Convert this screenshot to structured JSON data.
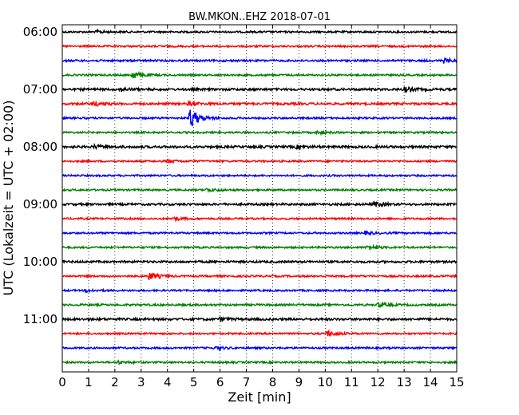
{
  "chart_data": {
    "type": "line",
    "title": "BW.MKON..EHZ 2018-07-01",
    "xlabel": "Zeit  [min]",
    "ylabel": "UTC (Lokalzeit = UTC + 02:00)",
    "xlim": [
      0,
      15
    ],
    "x_ticks": [
      "0",
      "1",
      "2",
      "3",
      "4",
      "5",
      "6",
      "7",
      "8",
      "9",
      "10",
      "11",
      "12",
      "13",
      "14",
      "15"
    ],
    "y_tick_labels": [
      "06:00",
      "07:00",
      "08:00",
      "09:00",
      "10:00",
      "11:00"
    ],
    "grid": "vertical dotted",
    "trace_colors": [
      "#000000",
      "#ff0000",
      "#0000ff",
      "#008000"
    ],
    "traces": [
      {
        "start": "06:00",
        "color": "#000000",
        "amplitude": 1.0,
        "events": [
          {
            "t": 1.3,
            "amp": 1.5
          }
        ]
      },
      {
        "start": "06:15",
        "color": "#ff0000",
        "amplitude": 1.0,
        "events": []
      },
      {
        "start": "06:30",
        "color": "#0000ff",
        "amplitude": 1.1,
        "events": [
          {
            "t": 14.5,
            "amp": 2.5
          }
        ]
      },
      {
        "start": "06:45",
        "color": "#008000",
        "amplitude": 1.0,
        "events": [
          {
            "t": 2.65,
            "amp": 5
          }
        ]
      },
      {
        "start": "07:00",
        "color": "#000000",
        "amplitude": 1.3,
        "events": [
          {
            "t": 2.2,
            "amp": 2
          },
          {
            "t": 13.0,
            "amp": 3
          }
        ]
      },
      {
        "start": "07:15",
        "color": "#ff0000",
        "amplitude": 1.2,
        "events": [
          {
            "t": 1.2,
            "amp": 2.5
          },
          {
            "t": 4.8,
            "amp": 2
          }
        ]
      },
      {
        "start": "07:30",
        "color": "#0000ff",
        "amplitude": 1.0,
        "events": [
          {
            "t": 4.85,
            "amp": 13
          }
        ]
      },
      {
        "start": "07:45",
        "color": "#008000",
        "amplitude": 1.0,
        "events": [
          {
            "t": 9.7,
            "amp": 1.8
          }
        ]
      },
      {
        "start": "08:00",
        "color": "#000000",
        "amplitude": 1.3,
        "events": [
          {
            "t": 1.2,
            "amp": 2
          },
          {
            "t": 8.9,
            "amp": 1.6
          }
        ]
      },
      {
        "start": "08:15",
        "color": "#ff0000",
        "amplitude": 1.0,
        "events": [
          {
            "t": 4.0,
            "amp": 1.8
          }
        ]
      },
      {
        "start": "08:30",
        "color": "#0000ff",
        "amplitude": 1.0,
        "events": []
      },
      {
        "start": "08:45",
        "color": "#008000",
        "amplitude": 1.0,
        "events": [
          {
            "t": 5.5,
            "amp": 2
          }
        ]
      },
      {
        "start": "09:00",
        "color": "#000000",
        "amplitude": 1.2,
        "events": [
          {
            "t": 11.85,
            "amp": 3
          }
        ]
      },
      {
        "start": "09:15",
        "color": "#ff0000",
        "amplitude": 1.0,
        "events": [
          {
            "t": 4.2,
            "amp": 1.8
          }
        ]
      },
      {
        "start": "09:30",
        "color": "#0000ff",
        "amplitude": 1.0,
        "events": [
          {
            "t": 11.5,
            "amp": 1.8
          }
        ]
      },
      {
        "start": "09:45",
        "color": "#008000",
        "amplitude": 1.0,
        "events": [
          {
            "t": 11.6,
            "amp": 3
          }
        ]
      },
      {
        "start": "10:00",
        "color": "#000000",
        "amplitude": 1.2,
        "events": []
      },
      {
        "start": "10:15",
        "color": "#ff0000",
        "amplitude": 1.0,
        "events": [
          {
            "t": 3.3,
            "amp": 4.5
          }
        ]
      },
      {
        "start": "10:30",
        "color": "#0000ff",
        "amplitude": 1.0,
        "events": [
          {
            "t": 0.9,
            "amp": 1.6
          }
        ]
      },
      {
        "start": "10:45",
        "color": "#008000",
        "amplitude": 1.1,
        "events": [
          {
            "t": 12.0,
            "amp": 2.4
          }
        ]
      },
      {
        "start": "11:00",
        "color": "#000000",
        "amplitude": 1.3,
        "events": [
          {
            "t": 6.0,
            "amp": 1.8
          }
        ]
      },
      {
        "start": "11:15",
        "color": "#ff0000",
        "amplitude": 1.0,
        "events": [
          {
            "t": 10.05,
            "amp": 4
          }
        ]
      },
      {
        "start": "11:30",
        "color": "#0000ff",
        "amplitude": 1.0,
        "events": [
          {
            "t": 5.8,
            "amp": 1.8
          }
        ]
      },
      {
        "start": "11:45",
        "color": "#008000",
        "amplitude": 1.0,
        "events": [
          {
            "t": 2.1,
            "amp": 1.8
          }
        ]
      }
    ]
  }
}
